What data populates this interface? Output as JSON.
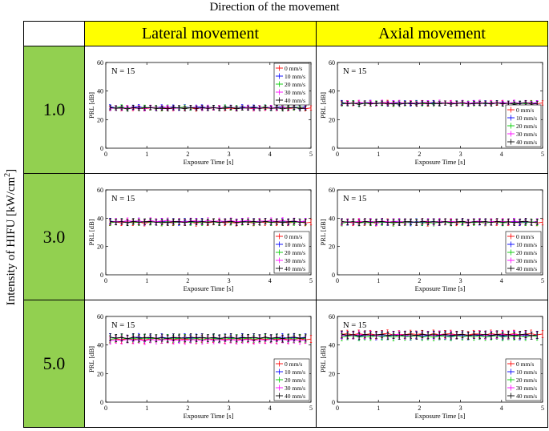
{
  "figure": {
    "top_title": "Direction of the movement",
    "side_title_main": "Intensity of HIFU [kW/cm",
    "side_title_sup": "2",
    "side_title_end": "]",
    "columns": [
      "Lateral movement",
      "Axial movement"
    ],
    "rows": [
      "1.0",
      "3.0",
      "5.0"
    ],
    "colors": {
      "header": "#ffff00",
      "row_header": "#92d050"
    }
  },
  "legend_labels": [
    "0 mm/s",
    "10 mm/s",
    "20 mm/s",
    "30 mm/s",
    "40 mm/s"
  ],
  "series_colors": [
    "#ff0000",
    "#0000ff",
    "#00cc00",
    "#ff00ff",
    "#000000"
  ],
  "chart_data": [
    {
      "type": "line",
      "panel": "lateral-1.0",
      "annotation": "N = 15",
      "xlabel": "Exposure Time [s]",
      "ylabel": "PRL [dB]",
      "xlim": [
        0,
        5
      ],
      "ylim": [
        0,
        60
      ],
      "xticks": [
        0,
        1,
        2,
        3,
        4,
        5
      ],
      "yticks": [
        0,
        20,
        40,
        60
      ],
      "legend_position": "top-right",
      "series": [
        {
          "name": "0 mm/s",
          "mean": 28.0,
          "err": 1.5
        },
        {
          "name": "10 mm/s",
          "mean": 28.5,
          "err": 1.5
        },
        {
          "name": "20 mm/s",
          "mean": 28.3,
          "err": 1.5
        },
        {
          "name": "30 mm/s",
          "mean": 28.2,
          "err": 1.5
        },
        {
          "name": "40 mm/s",
          "mean": 28.0,
          "err": 1.5
        }
      ]
    },
    {
      "type": "line",
      "panel": "axial-1.0",
      "annotation": "N = 15",
      "xlabel": "Exposure Time [s]",
      "ylabel": "PRL [dB]",
      "xlim": [
        0,
        5
      ],
      "ylim": [
        0,
        60
      ],
      "xticks": [
        0,
        1,
        2,
        3,
        4,
        5
      ],
      "yticks": [
        0,
        20,
        40,
        60
      ],
      "legend_position": "bottom-right",
      "series": [
        {
          "name": "0 mm/s",
          "mean": 31.5,
          "err": 1.5
        },
        {
          "name": "10 mm/s",
          "mean": 31.5,
          "err": 1.5
        },
        {
          "name": "20 mm/s",
          "mean": 31.3,
          "err": 1.5
        },
        {
          "name": "30 mm/s",
          "mean": 31.7,
          "err": 1.5
        },
        {
          "name": "40 mm/s",
          "mean": 31.2,
          "err": 1.5
        }
      ]
    },
    {
      "type": "line",
      "panel": "lateral-3.0",
      "annotation": "N = 15",
      "xlabel": "Exposure Time [s]",
      "ylabel": "PRL [dB]",
      "xlim": [
        0,
        5
      ],
      "ylim": [
        0,
        60
      ],
      "xticks": [
        0,
        1,
        2,
        3,
        4,
        5
      ],
      "yticks": [
        0,
        20,
        40,
        60
      ],
      "legend_position": "bottom-right",
      "series": [
        {
          "name": "0 mm/s",
          "mean": 37.0,
          "err": 2.0
        },
        {
          "name": "10 mm/s",
          "mean": 37.5,
          "err": 2.0
        },
        {
          "name": "20 mm/s",
          "mean": 37.2,
          "err": 2.0
        },
        {
          "name": "30 mm/s",
          "mean": 37.8,
          "err": 2.0
        },
        {
          "name": "40 mm/s",
          "mean": 37.3,
          "err": 2.0
        }
      ]
    },
    {
      "type": "line",
      "panel": "axial-3.0",
      "annotation": "N = 15",
      "xlabel": "Exposure Time [s]",
      "ylabel": "PRL [dB]",
      "xlim": [
        0,
        5
      ],
      "ylim": [
        0,
        60
      ],
      "xticks": [
        0,
        1,
        2,
        3,
        4,
        5
      ],
      "yticks": [
        0,
        20,
        40,
        60
      ],
      "legend_position": "bottom-right",
      "series": [
        {
          "name": "0 mm/s",
          "mean": 37.0,
          "err": 2.0
        },
        {
          "name": "10 mm/s",
          "mean": 37.2,
          "err": 2.0
        },
        {
          "name": "20 mm/s",
          "mean": 37.0,
          "err": 2.0
        },
        {
          "name": "30 mm/s",
          "mean": 37.5,
          "err": 2.0
        },
        {
          "name": "40 mm/s",
          "mean": 37.3,
          "err": 2.0
        }
      ]
    },
    {
      "type": "line",
      "panel": "lateral-5.0",
      "annotation": "N = 15",
      "xlabel": "Exposure Time [s]",
      "ylabel": "PRL [dB]",
      "xlim": [
        0,
        5
      ],
      "ylim": [
        0,
        60
      ],
      "xticks": [
        0,
        1,
        2,
        3,
        4,
        5
      ],
      "yticks": [
        0,
        20,
        40,
        60
      ],
      "legend_position": "bottom-right",
      "series": [
        {
          "name": "0 mm/s",
          "mean": 44.0,
          "err": 2.5
        },
        {
          "name": "10 mm/s",
          "mean": 45.0,
          "err": 2.5
        },
        {
          "name": "20 mm/s",
          "mean": 44.5,
          "err": 2.5
        },
        {
          "name": "30 mm/s",
          "mean": 43.5,
          "err": 2.5
        },
        {
          "name": "40 mm/s",
          "mean": 45.0,
          "err": 2.5
        }
      ]
    },
    {
      "type": "line",
      "panel": "axial-5.0",
      "annotation": "N = 15",
      "xlabel": "Exposure Time [s]",
      "ylabel": "PRL [dB]",
      "xlim": [
        0,
        5
      ],
      "ylim": [
        0,
        60
      ],
      "xticks": [
        0,
        1,
        2,
        3,
        4,
        5
      ],
      "yticks": [
        0,
        20,
        40,
        60
      ],
      "legend_position": "bottom-right",
      "series": [
        {
          "name": "0 mm/s",
          "mean": 47.5,
          "err": 2.5
        },
        {
          "name": "10 mm/s",
          "mean": 46.5,
          "err": 2.5
        },
        {
          "name": "20 mm/s",
          "mean": 46.0,
          "err": 2.5
        },
        {
          "name": "30 mm/s",
          "mean": 47.0,
          "err": 2.5
        },
        {
          "name": "40 mm/s",
          "mean": 47.0,
          "err": 2.5
        }
      ]
    }
  ]
}
